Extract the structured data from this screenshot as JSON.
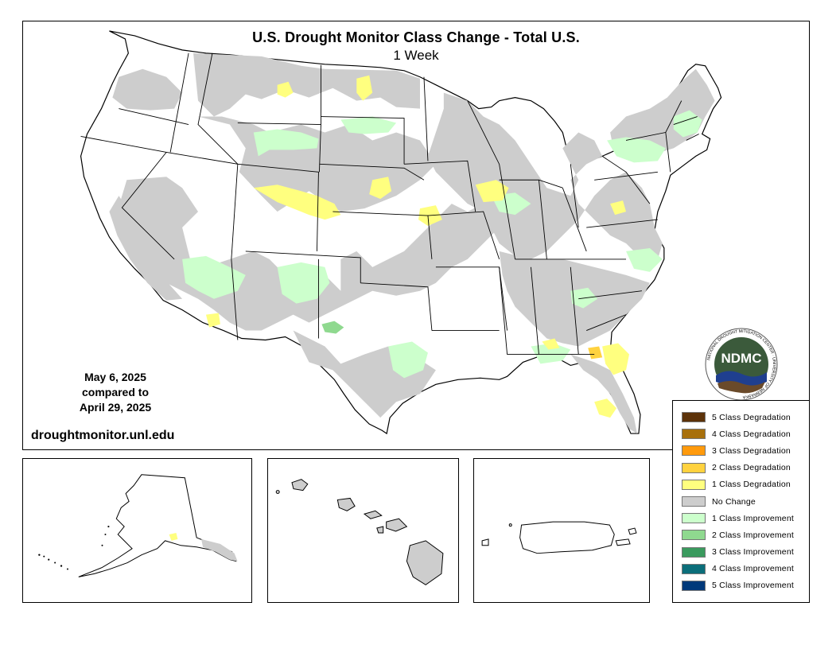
{
  "title": "U.S. Drought Monitor Class Change - Total U.S.",
  "subtitle": "1 Week",
  "dates": {
    "line1": "May 6, 2025",
    "line2": "compared to",
    "line3": "April 29, 2025"
  },
  "website": "droughtmonitor.unl.edu",
  "logo": {
    "text": "NDMC",
    "ring_text": "NATIONAL DROUGHT MITIGATION CENTER · UNIVERSITY OF NEBRASKA"
  },
  "legend": [
    {
      "label": "5 Class Degradation",
      "color": "#5c3209"
    },
    {
      "label": "4 Class Degradation",
      "color": "#a8700c"
    },
    {
      "label": "3 Class Degradation",
      "color": "#ff9a0c"
    },
    {
      "label": "2 Class Degradation",
      "color": "#ffd23f"
    },
    {
      "label": "1 Class Degradation",
      "color": "#ffff7f"
    },
    {
      "label": "No Change",
      "color": "#cdcdcd"
    },
    {
      "label": "1 Class Improvement",
      "color": "#ccffcc"
    },
    {
      "label": "2 Class Improvement",
      "color": "#8fd98f"
    },
    {
      "label": "3 Class Improvement",
      "color": "#3a9a5e"
    },
    {
      "label": "4 Class Improvement",
      "color": "#0b6e7a"
    },
    {
      "label": "5 Class Improvement",
      "color": "#00397a"
    }
  ],
  "colors": {
    "no_change": "#cdcdcd",
    "improve1": "#ccffcc",
    "improve2": "#8fd98f",
    "degrade1": "#ffff7f",
    "degrade2": "#ffd23f",
    "logo_green": "#3b5a3b",
    "logo_blue": "#1f3f8f",
    "logo_brown": "#6a4a2a"
  }
}
